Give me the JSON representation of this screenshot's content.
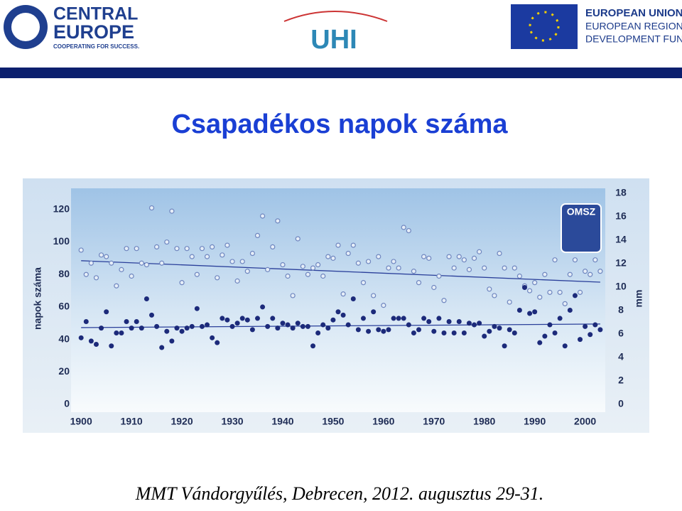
{
  "header": {
    "left_logo": [
      "CENTRAL",
      "EUROPE"
    ],
    "left_tagline": "COOPERATING FOR SUCCESS.",
    "center_logo": "UHI",
    "right_logo": [
      "EUROPEAN UNION",
      "EUROPEAN REGIONAL",
      "DEVELOPMENT FUND"
    ]
  },
  "title": "Csapadékos napok száma",
  "footer": "MMT Vándorgyűlés, Debrecen, 2012. augusztus 29-31.",
  "chart_data": {
    "type": "scatter",
    "logo": "OMSZ",
    "ylabel": "napok száma",
    "y2label": "mm",
    "xlim": [
      1898,
      2004
    ],
    "xticks": [
      1900,
      1910,
      1920,
      1930,
      1940,
      1950,
      1960,
      1970,
      1980,
      1990,
      2000
    ],
    "ylim": [
      0,
      130
    ],
    "yticks": [
      0,
      20,
      40,
      60,
      80,
      100,
      120
    ],
    "y2lim": [
      0,
      18
    ],
    "y2ticks": [
      0,
      2,
      4,
      6,
      8,
      10,
      12,
      14,
      16,
      18
    ],
    "x": [
      1900,
      1901,
      1902,
      1903,
      1904,
      1905,
      1906,
      1907,
      1908,
      1909,
      1910,
      1911,
      1912,
      1913,
      1914,
      1915,
      1916,
      1917,
      1918,
      1919,
      1920,
      1921,
      1922,
      1923,
      1924,
      1925,
      1926,
      1927,
      1928,
      1929,
      1930,
      1931,
      1932,
      1933,
      1934,
      1935,
      1936,
      1937,
      1938,
      1939,
      1940,
      1941,
      1942,
      1943,
      1944,
      1945,
      1946,
      1947,
      1948,
      1949,
      1950,
      1951,
      1952,
      1953,
      1954,
      1955,
      1956,
      1957,
      1958,
      1959,
      1960,
      1961,
      1962,
      1963,
      1964,
      1965,
      1966,
      1967,
      1968,
      1969,
      1970,
      1971,
      1972,
      1973,
      1974,
      1975,
      1976,
      1977,
      1978,
      1979,
      1980,
      1981,
      1982,
      1983,
      1984,
      1985,
      1986,
      1987,
      1988,
      1989,
      1990,
      1991,
      1992,
      1993,
      1994,
      1995,
      1996,
      1997,
      1998,
      1999,
      2000,
      2001,
      2002,
      2003
    ],
    "series": [
      {
        "marker": "open",
        "color": "#6f86bf",
        "values": [
          95,
          80,
          87,
          78,
          92,
          91,
          87,
          73,
          83,
          96,
          79,
          96,
          87,
          86,
          121,
          97,
          87,
          100,
          119,
          96,
          75,
          96,
          91,
          80,
          96,
          91,
          97,
          78,
          92,
          98,
          88,
          76,
          88,
          82,
          93,
          104,
          116,
          83,
          97,
          113,
          86,
          79,
          67,
          102,
          85,
          80,
          84,
          86,
          79,
          91,
          90,
          98,
          68,
          93,
          98,
          87,
          75,
          88,
          67,
          91,
          61,
          84,
          88,
          84,
          109,
          107,
          82,
          75,
          91,
          90,
          72,
          79,
          64,
          91,
          84,
          91,
          89,
          83,
          90,
          94,
          84,
          71,
          67,
          93,
          84,
          63,
          84,
          79,
          73,
          70,
          75,
          66,
          80,
          69,
          89,
          69,
          62,
          80,
          89,
          69,
          82,
          80,
          89,
          82
        ],
        "trend": {
          "x": [
            1900,
            2003
          ],
          "values": [
            88.5,
            75.3
          ]
        }
      },
      {
        "marker": "filled",
        "color": "#1c2a7a",
        "values": [
          41,
          51,
          39,
          37,
          47,
          57,
          36,
          44,
          44,
          51,
          47,
          51,
          47,
          65,
          55,
          48,
          35,
          45,
          39,
          47,
          45,
          47,
          48,
          59,
          48,
          49,
          41,
          38,
          53,
          52,
          48,
          50,
          53,
          52,
          46,
          53,
          60,
          48,
          53,
          47,
          50,
          49,
          47,
          50,
          48,
          48,
          36,
          44,
          49,
          47,
          52,
          57,
          55,
          49,
          65,
          46,
          53,
          45,
          57,
          46,
          45,
          46,
          53,
          53,
          53,
          49,
          44,
          46,
          53,
          51,
          45,
          53,
          44,
          51,
          44,
          51,
          44,
          50,
          49,
          50,
          42,
          45,
          48,
          47,
          36,
          46,
          44,
          58,
          72,
          56,
          57,
          38,
          42,
          49,
          44,
          53,
          36,
          58,
          67,
          40,
          48,
          43,
          49,
          46
        ],
        "trend": {
          "x": [
            1900,
            2003
          ],
          "values": [
            47.3,
            49.5
          ]
        }
      }
    ]
  }
}
